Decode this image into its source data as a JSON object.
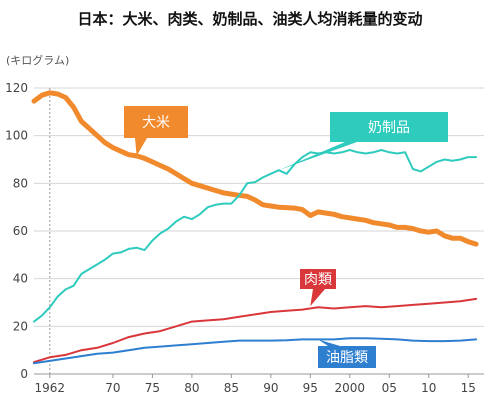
{
  "chart_data": {
    "type": "line",
    "title": "日本：大米、肉类、奶制品、油类人均消耗量的变动",
    "ylabel": "(キログラム)",
    "xlabel": "",
    "ylim": [
      0,
      120
    ],
    "xlim": [
      1960,
      2017
    ],
    "y_ticks": [
      0,
      20,
      40,
      60,
      80,
      100,
      120
    ],
    "x_ticks": [
      {
        "value": 1962,
        "label": "1962"
      },
      {
        "value": 1970,
        "label": "70"
      },
      {
        "value": 1975,
        "label": "75"
      },
      {
        "value": 1980,
        "label": "80"
      },
      {
        "value": 1985,
        "label": "85"
      },
      {
        "value": 1990,
        "label": "90"
      },
      {
        "value": 1995,
        "label": "95"
      },
      {
        "value": 2000,
        "label": "2000"
      },
      {
        "value": 2005,
        "label": "05"
      },
      {
        "value": 2010,
        "label": "10"
      },
      {
        "value": 2015,
        "label": "15"
      }
    ],
    "grid": true,
    "series": [
      {
        "name": "大米",
        "color": "#f08a2c",
        "x": [
          1960,
          1961,
          1962,
          1963,
          1964,
          1965,
          1966,
          1967,
          1968,
          1969,
          1970,
          1971,
          1972,
          1973,
          1974,
          1975,
          1976,
          1977,
          1978,
          1979,
          1980,
          1981,
          1982,
          1983,
          1984,
          1985,
          1986,
          1987,
          1988,
          1989,
          1990,
          1991,
          1992,
          1993,
          1994,
          1995,
          1996,
          1997,
          1998,
          1999,
          2000,
          2001,
          2002,
          2003,
          2004,
          2005,
          2006,
          2007,
          2008,
          2009,
          2010,
          2011,
          2012,
          2013,
          2014,
          2015,
          2016
        ],
        "values": [
          114.5,
          117,
          118,
          117.5,
          116,
          112,
          106,
          103,
          100,
          97,
          95,
          93.5,
          92,
          91.5,
          90.5,
          89,
          87.5,
          86,
          84,
          82,
          80,
          79,
          78,
          77,
          76,
          75.5,
          75,
          74.5,
          73,
          71,
          70.5,
          70,
          69.8,
          69.6,
          69,
          66.5,
          68,
          67.5,
          67,
          66,
          65.5,
          65,
          64.5,
          63.5,
          63,
          62.5,
          61.5,
          61.5,
          61,
          60,
          59.5,
          60,
          58,
          57,
          57,
          55.5,
          54.5
        ]
      },
      {
        "name": "奶制品",
        "color": "#2fcbbd",
        "x": [
          1960,
          1961,
          1962,
          1963,
          1964,
          1965,
          1966,
          1967,
          1968,
          1969,
          1970,
          1971,
          1972,
          1973,
          1974,
          1975,
          1976,
          1977,
          1978,
          1979,
          1980,
          1981,
          1982,
          1983,
          1984,
          1985,
          1986,
          1987,
          1988,
          1989,
          1990,
          1991,
          1992,
          1993,
          1994,
          1995,
          1996,
          1997,
          1998,
          1999,
          2000,
          2001,
          2002,
          2003,
          2004,
          2005,
          2006,
          2007,
          2008,
          2009,
          2010,
          2011,
          2012,
          2013,
          2014,
          2015,
          2016
        ],
        "values": [
          22,
          24.5,
          28,
          32.5,
          35.5,
          37,
          42,
          44,
          46,
          48,
          50.5,
          51,
          52.5,
          53,
          52,
          56,
          59,
          61,
          64,
          66,
          65,
          67,
          70,
          71,
          71.5,
          71.5,
          75,
          80,
          80.5,
          82.5,
          84,
          85.5,
          84,
          88,
          91,
          93,
          92.5,
          93,
          92.5,
          93,
          94,
          93,
          92.5,
          93,
          94,
          93,
          92.5,
          93,
          86,
          85,
          87,
          89,
          90,
          89.5,
          90,
          91,
          91
        ]
      },
      {
        "name": "肉類",
        "color": "#d9373a",
        "x": [
          1960,
          1962,
          1964,
          1966,
          1968,
          1970,
          1972,
          1974,
          1976,
          1978,
          1980,
          1982,
          1984,
          1986,
          1988,
          1990,
          1992,
          1994,
          1996,
          1998,
          2000,
          2002,
          2004,
          2006,
          2008,
          2010,
          2012,
          2014,
          2016
        ],
        "values": [
          5,
          7,
          8,
          10,
          11,
          13,
          15.5,
          17,
          18,
          20,
          22,
          22.5,
          23,
          24,
          25,
          26,
          26.5,
          27,
          28,
          27.5,
          28,
          28.5,
          28,
          28.5,
          29,
          29.5,
          30,
          30.5,
          31.5
        ]
      },
      {
        "name": "油脂類",
        "color": "#2e7fd0",
        "x": [
          1960,
          1962,
          1964,
          1966,
          1968,
          1970,
          1972,
          1974,
          1976,
          1978,
          1980,
          1982,
          1984,
          1986,
          1988,
          1990,
          1992,
          1994,
          1996,
          1998,
          2000,
          2002,
          2004,
          2006,
          2008,
          2010,
          2012,
          2014,
          2016
        ],
        "values": [
          4.5,
          5.5,
          6.5,
          7.5,
          8.5,
          9,
          10,
          11,
          11.5,
          12,
          12.5,
          13,
          13.5,
          14,
          14,
          14,
          14.2,
          14.5,
          14.5,
          14.5,
          15,
          15,
          14.8,
          14.5,
          14,
          13.8,
          13.8,
          14,
          14.5
        ]
      }
    ],
    "labels": [
      {
        "text": "大米",
        "series": 0
      },
      {
        "text": "奶制品",
        "series": 1
      },
      {
        "text": "肉類",
        "series": 2
      },
      {
        "text": "油脂類",
        "series": 3
      }
    ]
  }
}
